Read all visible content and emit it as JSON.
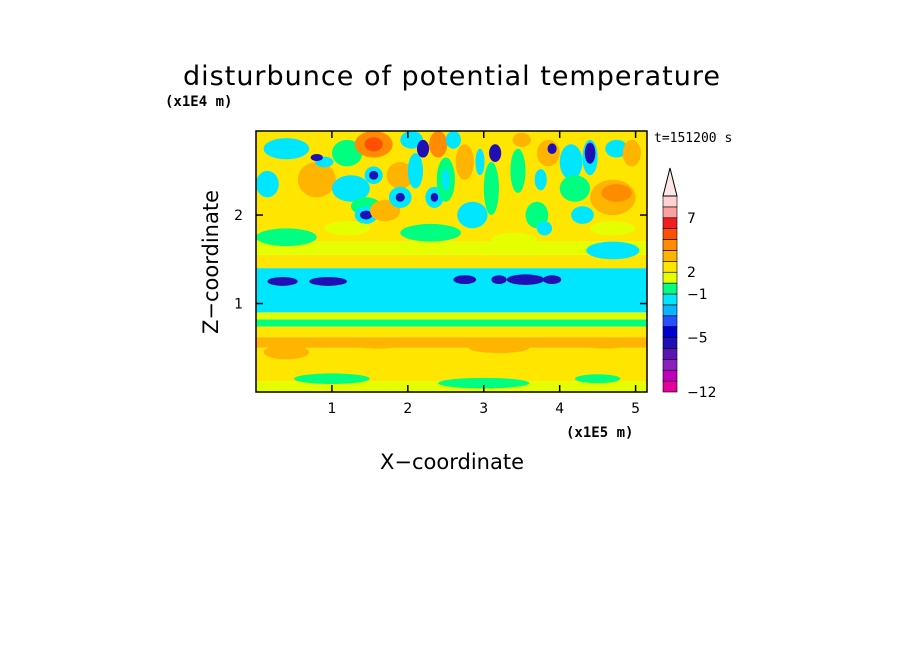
{
  "chart_data": {
    "type": "heatmap",
    "title": "disturbunce of potential temperature",
    "xlabel": "X−coordinate",
    "ylabel": "Z−coordinate",
    "x_unit": "(x1E5 m)",
    "y_unit": "(x1E4 m)",
    "time_label": "t=151200 s",
    "xlim": [
      0,
      5.15
    ],
    "ylim": [
      0,
      2.95
    ],
    "x_ticks": [
      1,
      2,
      3,
      4,
      5
    ],
    "y_ticks": [
      1,
      2
    ],
    "x_tick_labels": [
      "1",
      "2",
      "3",
      "4",
      "5"
    ],
    "y_tick_labels": [
      "1",
      "2"
    ],
    "colorbar": {
      "levels": [
        -12,
        -10,
        -8,
        -7,
        -6,
        -5,
        -4,
        -3,
        -2,
        -1,
        1,
        2,
        3,
        4,
        5,
        6,
        7,
        8,
        9
      ],
      "tick_values": [
        -12,
        -5,
        -1,
        2,
        7
      ],
      "tick_labels": [
        "−12",
        "−5",
        "−1",
        "2",
        "7"
      ],
      "colors": [
        "#e6009a",
        "#bf00bf",
        "#8c1fbf",
        "#5a14b4",
        "#1e10b4",
        "#0000d2",
        "#2850ff",
        "#0ab4ff",
        "#00e6ff",
        "#00ff80",
        "#e6ff00",
        "#ffe600",
        "#ffb400",
        "#ff8c00",
        "#ff5000",
        "#f01e1e",
        "#ffa0a0",
        "#ffd2d2"
      ],
      "extend": "max"
    },
    "bands": [
      {
        "zmin": 0.0,
        "zmax": 0.12,
        "value": 1.5
      },
      {
        "zmin": 0.12,
        "zmax": 0.5,
        "value": 2.5
      },
      {
        "zmin": 0.5,
        "zmax": 0.62,
        "value": 3.5
      },
      {
        "zmin": 0.62,
        "zmax": 0.74,
        "value": 2.5
      },
      {
        "zmin": 0.74,
        "zmax": 0.82,
        "value": 0.0
      },
      {
        "zmin": 0.82,
        "zmax": 0.9,
        "value": 1.5
      },
      {
        "zmin": 0.9,
        "zmax": 1.4,
        "value": -1.5
      },
      {
        "zmin": 1.4,
        "zmax": 1.55,
        "value": 2.5
      },
      {
        "zmin": 1.55,
        "zmax": 1.7,
        "value": 1.5
      },
      {
        "zmin": 1.7,
        "zmax": 2.95,
        "value": 2.5
      }
    ],
    "blobs": [
      {
        "x": 0.35,
        "z": 1.25,
        "rx": 0.2,
        "rz": 0.05,
        "value": -6
      },
      {
        "x": 0.95,
        "z": 1.25,
        "rx": 0.25,
        "rz": 0.05,
        "value": -6
      },
      {
        "x": 2.75,
        "z": 1.27,
        "rx": 0.15,
        "rz": 0.05,
        "value": -6
      },
      {
        "x": 3.2,
        "z": 1.27,
        "rx": 0.1,
        "rz": 0.05,
        "value": -6
      },
      {
        "x": 3.55,
        "z": 1.27,
        "rx": 0.25,
        "rz": 0.06,
        "value": -6
      },
      {
        "x": 3.9,
        "z": 1.27,
        "rx": 0.12,
        "rz": 0.05,
        "value": -6
      },
      {
        "x": 0.15,
        "z": 2.35,
        "rx": 0.15,
        "rz": 0.15,
        "value": -1.5
      },
      {
        "x": 0.4,
        "z": 2.75,
        "rx": 0.3,
        "rz": 0.12,
        "value": -1.5
      },
      {
        "x": 0.8,
        "z": 2.4,
        "rx": 0.25,
        "rz": 0.2,
        "value": 3.5
      },
      {
        "x": 1.2,
        "z": 2.7,
        "rx": 0.2,
        "rz": 0.15,
        "value": 0.0
      },
      {
        "x": 1.25,
        "z": 2.3,
        "rx": 0.25,
        "rz": 0.15,
        "value": -1.5
      },
      {
        "x": 1.45,
        "z": 2.1,
        "rx": 0.2,
        "rz": 0.1,
        "value": 0.0
      },
      {
        "x": 1.55,
        "z": 2.8,
        "rx": 0.25,
        "rz": 0.15,
        "value": 4.5
      },
      {
        "x": 1.55,
        "z": 2.8,
        "rx": 0.12,
        "rz": 0.08,
        "value": 5.5
      },
      {
        "x": 1.55,
        "z": 2.45,
        "rx": 0.12,
        "rz": 0.1,
        "value": -1.5
      },
      {
        "x": 1.55,
        "z": 2.45,
        "rx": 0.06,
        "rz": 0.05,
        "value": -6
      },
      {
        "x": 0.9,
        "z": 2.6,
        "rx": 0.12,
        "rz": 0.06,
        "value": -1.5
      },
      {
        "x": 0.8,
        "z": 2.65,
        "rx": 0.08,
        "rz": 0.04,
        "value": -6
      },
      {
        "x": 1.45,
        "z": 2.0,
        "rx": 0.15,
        "rz": 0.1,
        "value": -1.5
      },
      {
        "x": 1.45,
        "z": 2.0,
        "rx": 0.08,
        "rz": 0.05,
        "value": -6
      },
      {
        "x": 1.7,
        "z": 2.05,
        "rx": 0.2,
        "rz": 0.12,
        "value": 3.5
      },
      {
        "x": 1.9,
        "z": 2.45,
        "rx": 0.18,
        "rz": 0.15,
        "value": 3.5
      },
      {
        "x": 1.9,
        "z": 2.2,
        "rx": 0.15,
        "rz": 0.12,
        "value": -1.5
      },
      {
        "x": 1.9,
        "z": 2.2,
        "rx": 0.06,
        "rz": 0.05,
        "value": -6
      },
      {
        "x": 2.05,
        "z": 2.85,
        "rx": 0.15,
        "rz": 0.1,
        "value": -1.5
      },
      {
        "x": 2.1,
        "z": 2.5,
        "rx": 0.1,
        "rz": 0.2,
        "value": -1.5
      },
      {
        "x": 2.2,
        "z": 2.75,
        "rx": 0.08,
        "rz": 0.1,
        "value": -6
      },
      {
        "x": 2.4,
        "z": 2.8,
        "rx": 0.12,
        "rz": 0.15,
        "value": 4.5
      },
      {
        "x": 2.35,
        "z": 2.2,
        "rx": 0.12,
        "rz": 0.12,
        "value": -1.5
      },
      {
        "x": 2.35,
        "z": 2.2,
        "rx": 0.05,
        "rz": 0.05,
        "value": -6
      },
      {
        "x": 2.5,
        "z": 2.4,
        "rx": 0.12,
        "rz": 0.25,
        "value": 0.0
      },
      {
        "x": 2.5,
        "z": 2.4,
        "rx": 0.05,
        "rz": 0.12,
        "value": -1.5
      },
      {
        "x": 2.6,
        "z": 2.85,
        "rx": 0.1,
        "rz": 0.1,
        "value": -1.5
      },
      {
        "x": 2.75,
        "z": 2.6,
        "rx": 0.12,
        "rz": 0.2,
        "value": 3.5
      },
      {
        "x": 2.85,
        "z": 2.0,
        "rx": 0.2,
        "rz": 0.15,
        "value": -1.5
      },
      {
        "x": 2.95,
        "z": 2.6,
        "rx": 0.06,
        "rz": 0.15,
        "value": -1.5
      },
      {
        "x": 3.1,
        "z": 2.3,
        "rx": 0.1,
        "rz": 0.3,
        "value": 0.0
      },
      {
        "x": 3.15,
        "z": 2.7,
        "rx": 0.08,
        "rz": 0.1,
        "value": -6
      },
      {
        "x": 3.45,
        "z": 2.5,
        "rx": 0.1,
        "rz": 0.25,
        "value": 0.0
      },
      {
        "x": 3.5,
        "z": 2.85,
        "rx": 0.12,
        "rz": 0.08,
        "value": 3.5
      },
      {
        "x": 3.7,
        "z": 2.0,
        "rx": 0.15,
        "rz": 0.15,
        "value": 0.0
      },
      {
        "x": 3.75,
        "z": 2.4,
        "rx": 0.08,
        "rz": 0.12,
        "value": -1.5
      },
      {
        "x": 3.8,
        "z": 1.85,
        "rx": 0.1,
        "rz": 0.08,
        "value": -1.5
      },
      {
        "x": 3.85,
        "z": 2.7,
        "rx": 0.15,
        "rz": 0.15,
        "value": 3.5
      },
      {
        "x": 3.9,
        "z": 2.75,
        "rx": 0.06,
        "rz": 0.06,
        "value": -6
      },
      {
        "x": 4.15,
        "z": 2.6,
        "rx": 0.15,
        "rz": 0.2,
        "value": -1.5
      },
      {
        "x": 4.2,
        "z": 2.3,
        "rx": 0.2,
        "rz": 0.15,
        "value": 0.0
      },
      {
        "x": 4.3,
        "z": 2.0,
        "rx": 0.15,
        "rz": 0.1,
        "value": -1.5
      },
      {
        "x": 4.4,
        "z": 2.65,
        "rx": 0.1,
        "rz": 0.2,
        "value": -1.5
      },
      {
        "x": 4.4,
        "z": 2.7,
        "rx": 0.07,
        "rz": 0.12,
        "value": -6
      },
      {
        "x": 4.7,
        "z": 2.2,
        "rx": 0.3,
        "rz": 0.2,
        "value": 3.5
      },
      {
        "x": 4.75,
        "z": 2.25,
        "rx": 0.2,
        "rz": 0.1,
        "value": 4.5
      },
      {
        "x": 4.75,
        "z": 2.75,
        "rx": 0.15,
        "rz": 0.1,
        "value": -1.5
      },
      {
        "x": 4.7,
        "z": 1.6,
        "rx": 0.35,
        "rz": 0.1,
        "value": -1.5
      },
      {
        "x": 4.7,
        "z": 1.85,
        "rx": 0.3,
        "rz": 0.08,
        "value": 1.5
      },
      {
        "x": 4.95,
        "z": 2.7,
        "rx": 0.12,
        "rz": 0.15,
        "value": 3.5
      },
      {
        "x": 0.4,
        "z": 1.75,
        "rx": 0.4,
        "rz": 0.1,
        "value": 0.0
      },
      {
        "x": 1.2,
        "z": 1.85,
        "rx": 0.3,
        "rz": 0.08,
        "value": 1.5
      },
      {
        "x": 2.3,
        "z": 1.8,
        "rx": 0.4,
        "rz": 0.1,
        "value": 0.0
      },
      {
        "x": 3.4,
        "z": 1.72,
        "rx": 0.3,
        "rz": 0.08,
        "value": 1.5
      },
      {
        "x": 0.4,
        "z": 0.45,
        "rx": 0.3,
        "rz": 0.08,
        "value": 3.5
      },
      {
        "x": 1.6,
        "z": 0.55,
        "rx": 0.35,
        "rz": 0.06,
        "value": 3.5
      },
      {
        "x": 3.2,
        "z": 0.5,
        "rx": 0.4,
        "rz": 0.06,
        "value": 3.5
      },
      {
        "x": 4.6,
        "z": 0.55,
        "rx": 0.3,
        "rz": 0.06,
        "value": 3.5
      },
      {
        "x": 1.0,
        "z": 0.15,
        "rx": 0.5,
        "rz": 0.06,
        "value": 0.0
      },
      {
        "x": 3.0,
        "z": 0.1,
        "rx": 0.6,
        "rz": 0.06,
        "value": 0.0
      },
      {
        "x": 4.5,
        "z": 0.15,
        "rx": 0.3,
        "rz": 0.05,
        "value": 0.0
      }
    ]
  }
}
